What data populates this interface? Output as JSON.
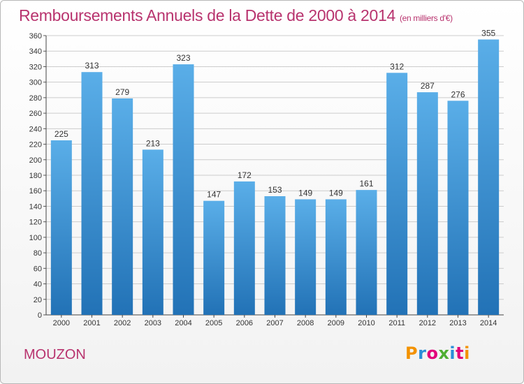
{
  "chart_data": {
    "type": "bar",
    "title": "Remboursements Annuels de la Dette de 2000 à 2014",
    "unit_label": "(en milliers d'€)",
    "categories": [
      "2000",
      "2001",
      "2002",
      "2003",
      "2004",
      "2005",
      "2006",
      "2007",
      "2008",
      "2009",
      "2010",
      "2011",
      "2012",
      "2013",
      "2014"
    ],
    "values": [
      225,
      313,
      279,
      213,
      323,
      147,
      172,
      153,
      149,
      149,
      161,
      312,
      287,
      276,
      355
    ],
    "ylim": [
      0,
      360
    ],
    "yticks": [
      0,
      20,
      40,
      60,
      80,
      100,
      120,
      140,
      160,
      180,
      200,
      220,
      240,
      260,
      280,
      300,
      320,
      340,
      360
    ],
    "grid": true,
    "xlabel": "",
    "ylabel": ""
  },
  "commune": "MOUZON",
  "logo": {
    "text": "Proxiti"
  },
  "colors": {
    "accent": "#b8336e",
    "bar_top": "#5aaee8",
    "bar_bottom": "#2272b6",
    "grid": "#cccccc",
    "logo_letters": [
      "#f39200",
      "#2a8ed8",
      "#e2007a",
      "#4fae32",
      "#2a8ed8",
      "#e2007a",
      "#f39200"
    ]
  }
}
